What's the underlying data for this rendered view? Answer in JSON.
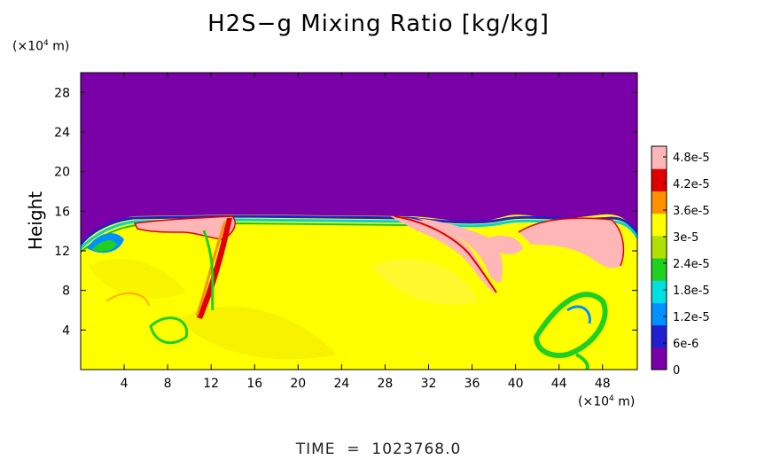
{
  "chart_data": {
    "type": "heatmap",
    "title": "H2S−g Mixing Ratio [kg/kg]",
    "ylabel": "Height",
    "x_unit_label": "(×10⁴ m)",
    "y_unit_label": "(×10⁴ m)",
    "x_ticks": [
      "4",
      "8",
      "12",
      "16",
      "20",
      "24",
      "28",
      "32",
      "36",
      "40",
      "44",
      "48"
    ],
    "x_tick_values": [
      4,
      8,
      12,
      16,
      20,
      24,
      28,
      32,
      36,
      40,
      44,
      48
    ],
    "y_ticks": [
      "4",
      "8",
      "12",
      "16",
      "20",
      "24",
      "28"
    ],
    "y_tick_values": [
      4,
      8,
      12,
      16,
      20,
      24,
      28
    ],
    "xlim": [
      0,
      51.2
    ],
    "ylim": [
      0,
      30
    ],
    "colorbar": {
      "labels": [
        "0",
        "6e-6",
        "1.2e-5",
        "1.8e-5",
        "2.4e-5",
        "3e-5",
        "3.6e-5",
        "4.2e-5",
        "4.8e-5"
      ],
      "values": [
        0,
        6e-06,
        1.2e-05,
        1.8e-05,
        2.4e-05,
        3e-05,
        3.6e-05,
        4.2e-05,
        4.8e-05
      ],
      "colors": [
        "#7a00a8",
        "#2020d0",
        "#0090ff",
        "#00e0e0",
        "#20d020",
        "#b0e000",
        "#ffff00",
        "#ff9000",
        "#e00000",
        "#ffb6b6"
      ]
    },
    "region_colors": {
      "upper_atmosphere": "#7a00a8",
      "lower_atmosphere": "#ffff00",
      "plume_max": "#ffb6b6"
    }
  },
  "footer": {
    "time_label": "TIME",
    "time_value": "1023768.0"
  }
}
